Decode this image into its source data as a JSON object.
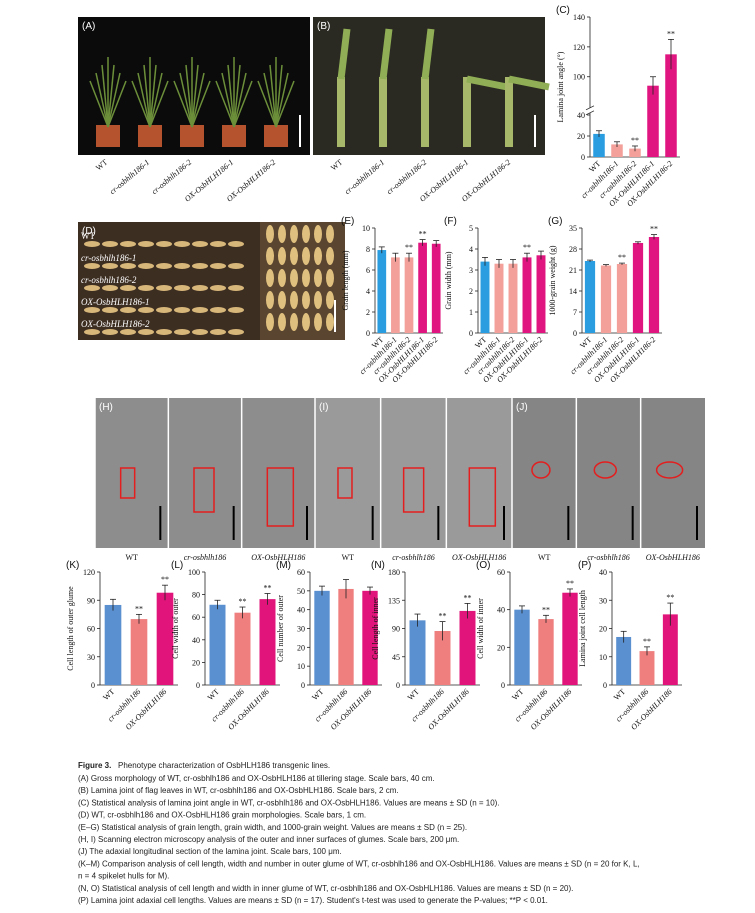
{
  "photos": [
    {
      "label": "(A)",
      "captions": [
        "WT",
        "cr-osbhlh186-1",
        "cr-osbhlh186-2",
        "OX-OsbHLH186-1",
        "OX-OsbHLH186-2"
      ]
    },
    {
      "label": "(B)",
      "captions": [
        "WT",
        "cr-osbhlh186-1",
        "cr-osbhlh186-2",
        "OX-OsbHLH186-1",
        "OX-OsbHLH186-2"
      ]
    },
    {
      "label": "(D)",
      "captions": [
        "WT",
        "cr-osbhlh186-1",
        "cr-osbhlh186-2",
        "OX-OsbHLH186-1",
        "OX-OsbHLH186-2"
      ]
    },
    {
      "label": "(H)",
      "captions": [
        "WT",
        "cr-osbhlh186",
        "OX-OsbHLH186"
      ]
    },
    {
      "label": "(I)",
      "captions": [
        "WT",
        "cr-osbhlh186",
        "OX-OsbHLH186"
      ]
    },
    {
      "label": "(J)",
      "captions": [
        "WT",
        "cr-osbhlh186",
        "OX-OsbHLH186"
      ]
    }
  ],
  "chart_data": [
    {
      "type": "bar",
      "panel": "(C)",
      "ylabel": "Lamina joint angle (°)",
      "categories": [
        "WT",
        "cr-osbhlh186-1",
        "cr-osbhlh186-2",
        "OX-OsbHLH186-1",
        "OX-OsbHLH186-2"
      ],
      "values": [
        22,
        12,
        8,
        94,
        115
      ],
      "errors": [
        3,
        2.5,
        2.5,
        6,
        10
      ],
      "significance": [
        null,
        null,
        "**",
        null,
        "**"
      ],
      "colors": [
        "#2a9de0",
        "#f3a09a",
        "#f3a09a",
        "#e0157f",
        "#e0157f"
      ],
      "ylim": [
        0,
        140
      ],
      "ybreak": [
        40,
        80
      ],
      "yticks": [
        0,
        20,
        40,
        100,
        120,
        140
      ]
    },
    {
      "type": "bar",
      "panel": "(E)",
      "ylabel": "Grain length (mm)",
      "categories": [
        "WT",
        "cr-osbhlh186-1",
        "cr-osbhlh186-2",
        "OX-OsbHLH186-1",
        "OX-OsbHLH186-2"
      ],
      "values": [
        7.9,
        7.2,
        7.2,
        8.6,
        8.5
      ],
      "errors": [
        0.3,
        0.4,
        0.4,
        0.3,
        0.3
      ],
      "significance": [
        null,
        null,
        "**",
        "**",
        null
      ],
      "colors": [
        "#2a9de0",
        "#f3a09a",
        "#f3a09a",
        "#e0157f",
        "#e0157f"
      ],
      "ylim": [
        0,
        10
      ],
      "yticks": [
        0,
        2,
        4,
        6,
        8,
        10
      ]
    },
    {
      "type": "bar",
      "panel": "(F)",
      "ylabel": "Grain width (mm)",
      "categories": [
        "WT",
        "cr-osbhlh186-1",
        "cr-osbhlh186-2",
        "OX-OsbHLH186-1",
        "OX-OsbHLH186-2"
      ],
      "values": [
        3.4,
        3.3,
        3.3,
        3.6,
        3.7
      ],
      "errors": [
        0.2,
        0.2,
        0.2,
        0.2,
        0.2
      ],
      "significance": [
        null,
        null,
        null,
        "**",
        null
      ],
      "colors": [
        "#2a9de0",
        "#f3a09a",
        "#f3a09a",
        "#e0157f",
        "#e0157f"
      ],
      "ylim": [
        0,
        5
      ],
      "yticks": [
        0,
        1,
        2,
        3,
        4,
        5
      ]
    },
    {
      "type": "bar",
      "panel": "(G)",
      "ylabel": "1000-grain weight (g)",
      "categories": [
        "WT",
        "cr-osbhlh186-1",
        "cr-osbhlh186-2",
        "OX-OsbHLH186-1",
        "OX-OsbHLH186-2"
      ],
      "values": [
        24,
        22.5,
        23,
        30,
        32
      ],
      "errors": [
        0.3,
        0.3,
        0.3,
        0.4,
        0.8
      ],
      "significance": [
        null,
        null,
        "**",
        null,
        "**"
      ],
      "colors": [
        "#2a9de0",
        "#f3a09a",
        "#f3a09a",
        "#e0157f",
        "#e0157f"
      ],
      "ylim": [
        0,
        35
      ],
      "yticks": [
        0,
        7,
        14,
        21,
        28,
        35
      ]
    },
    {
      "type": "bar",
      "panel": "(K)",
      "ylabel": "Cell length of outer glume",
      "categories": [
        "WT",
        "cr-osbhlh186",
        "OX-OsbHLH186"
      ],
      "values": [
        85,
        70,
        98
      ],
      "errors": [
        6,
        5,
        8
      ],
      "significance": [
        null,
        "**",
        "**"
      ],
      "colors": [
        "#5a8fd0",
        "#ef7f7f",
        "#e0147a"
      ],
      "ylim": [
        0,
        120
      ],
      "yticks": [
        0,
        30,
        60,
        90,
        120
      ]
    },
    {
      "type": "bar",
      "panel": "(L)",
      "ylabel": "Cell width of outer",
      "categories": [
        "WT",
        "cr-osbhlh186",
        "OX-OsbHLH186"
      ],
      "values": [
        71,
        64,
        76
      ],
      "errors": [
        4,
        5,
        5
      ],
      "significance": [
        null,
        "**",
        "**"
      ],
      "colors": [
        "#5a8fd0",
        "#ef7f7f",
        "#e0147a"
      ],
      "ylim": [
        0,
        100
      ],
      "yticks": [
        0,
        20,
        40,
        60,
        80,
        100
      ]
    },
    {
      "type": "bar",
      "panel": "(M)",
      "ylabel": "Cell number of outer",
      "categories": [
        "WT",
        "cr-osbhlh186",
        "OX-OsbHLH186"
      ],
      "values": [
        50,
        51,
        50
      ],
      "errors": [
        2.5,
        5,
        2
      ],
      "colors": [
        "#5a8fd0",
        "#ef7f7f",
        "#e0147a"
      ],
      "ylim": [
        0,
        60
      ],
      "yticks": [
        0,
        10,
        20,
        30,
        40,
        50,
        60
      ]
    },
    {
      "type": "bar",
      "panel": "(N)",
      "ylabel": "Cell length of inner",
      "categories": [
        "WT",
        "cr-osbhlh186",
        "OX-OsbHLH186"
      ],
      "values": [
        103,
        86,
        118
      ],
      "errors": [
        10,
        15,
        12
      ],
      "significance": [
        null,
        "**",
        "**"
      ],
      "colors": [
        "#5a8fd0",
        "#ef7f7f",
        "#e0147a"
      ],
      "ylim": [
        0,
        180
      ],
      "yticks": [
        0,
        45,
        90,
        135,
        180
      ]
    },
    {
      "type": "bar",
      "panel": "(O)",
      "ylabel": "Cell width of inner",
      "categories": [
        "WT",
        "cr-osbhlh186",
        "OX-OsbHLH186"
      ],
      "values": [
        40,
        35,
        49
      ],
      "errors": [
        2,
        2,
        2
      ],
      "significance": [
        null,
        "**",
        "**"
      ],
      "colors": [
        "#5a8fd0",
        "#ef7f7f",
        "#e0147a"
      ],
      "ylim": [
        0,
        60
      ],
      "yticks": [
        0,
        20,
        40,
        60
      ]
    },
    {
      "type": "bar",
      "panel": "(P)",
      "ylabel": "Lamina joint cell length",
      "categories": [
        "WT",
        "cr-osbhlh186",
        "OX-OsbHLH186"
      ],
      "values": [
        17,
        12,
        25
      ],
      "errors": [
        2,
        1.5,
        4
      ],
      "significance": [
        null,
        "**",
        "**"
      ],
      "colors": [
        "#5a8fd0",
        "#ef7f7f",
        "#e0147a"
      ],
      "ylim": [
        0,
        40
      ],
      "yticks": [
        0,
        10,
        20,
        30,
        40
      ]
    }
  ],
  "caption": {
    "figure_label": "Figure 3.",
    "title": "Phenotype characterization of OsbHLH186 transgenic lines.",
    "lines": [
      "(A) Gross morphology of WT, cr-osbhlh186 and OX-OsbHLH186 at tillering stage. Scale bars, 40 cm.",
      "(B) Lamina joint of flag leaves in WT, cr-osbhlh186 and OX-OsbHLH186. Scale bars, 2 cm.",
      "(C) Statistical analysis of lamina joint angle in WT, cr-osbhlh186 and OX-OsbHLH186. Values are means ± SD (n = 10).",
      "(D) WT, cr-osbhlh186 and OX-OsbHLH186 grain morphologies. Scale bars, 1 cm.",
      "(E–G) Statistical analysis of grain length, grain width, and 1000-grain weight. Values are means ± SD (n = 25).",
      "(H, I) Scanning electron microscopy analysis of the outer and inner surfaces of glumes. Scale bars, 200 μm.",
      "(J) The adaxial longitudinal section of the lamina joint. Scale bars, 100 μm.",
      "(K–M) Comparison analysis of cell length, width and number in outer glume of WT, cr-osbhlh186 and OX-OsbHLH186. Values are means ± SD (n = 20 for K, L,",
      "n = 4 spikelet hulls for M).",
      "(N, O) Statistical analysis of cell length and width in inner glume of WT, cr-osbhlh186 and OX-OsbHLH186. Values are means ± SD (n = 20).",
      "(P) Lamina joint adaxial cell lengths. Values are means ± SD (n = 17). Student's t-test was used to generate the P-values; **P < 0.01."
    ]
  }
}
